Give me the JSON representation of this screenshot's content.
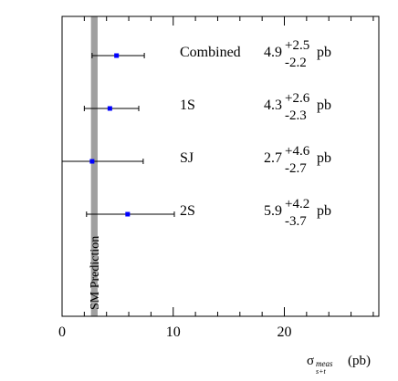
{
  "chart_data": {
    "type": "scatter",
    "orientation": "horizontal-error-bars",
    "xlabel": {
      "base": "σ",
      "sub_top": "meas",
      "sub_bottom": "s+t",
      "unit": "(pb)"
    },
    "xlim": [
      0,
      28.5
    ],
    "xticks_major": [
      0,
      10,
      20
    ],
    "xticks_minor_step": 2,
    "grid": false,
    "legend": "none",
    "band": {
      "label": "SM Prediction",
      "x_low": 2.6,
      "x_high": 3.2,
      "color": "#a0a0a0"
    },
    "marker_color": "#0000ff",
    "measurements": [
      {
        "name": "Combined",
        "value": 4.9,
        "err_up": 2.5,
        "err_down": 2.2,
        "value_text": "4.9",
        "up_text": "+2.5",
        "down_text": "-2.2",
        "unit": "pb"
      },
      {
        "name": "1S",
        "value": 4.3,
        "err_up": 2.6,
        "err_down": 2.3,
        "value_text": "4.3",
        "up_text": "+2.6",
        "down_text": "-2.3",
        "unit": "pb"
      },
      {
        "name": "SJ",
        "value": 2.7,
        "err_up": 4.6,
        "err_down": 2.7,
        "value_text": "2.7",
        "up_text": "+4.6",
        "down_text": "-2.7",
        "unit": "pb"
      },
      {
        "name": "2S",
        "value": 5.9,
        "err_up": 4.2,
        "err_down": 3.7,
        "value_text": "5.9",
        "up_text": "+4.2",
        "down_text": "-3.7",
        "unit": "pb"
      }
    ]
  }
}
